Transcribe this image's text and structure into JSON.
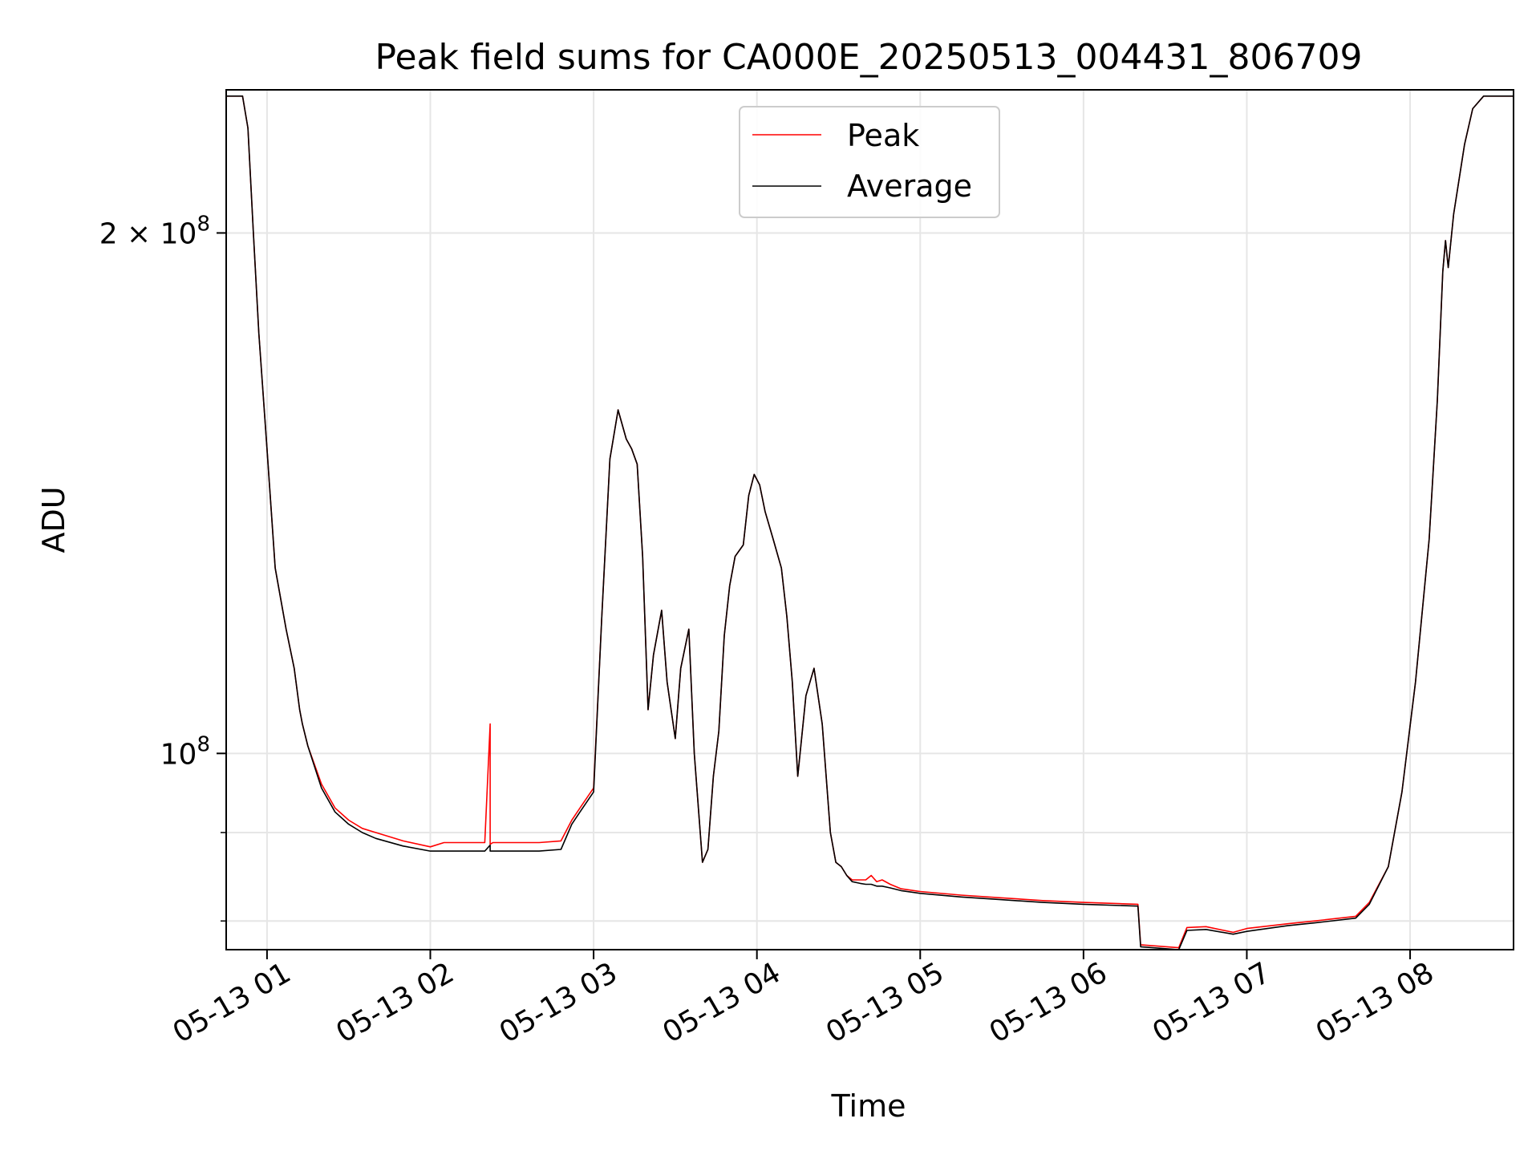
{
  "chart_data": {
    "type": "line",
    "title": "Peak field sums for CA000E_20250513_004431_806709",
    "xlabel": "Time",
    "ylabel": "ADU",
    "yscale": "log",
    "grid": true,
    "legend_position": "top-center",
    "xlim": [
      "05-13 00:45",
      "05-13 08:38"
    ],
    "ylim": [
      77000000,
      242000000
    ],
    "x_ticks": [
      {
        "value": "05-13 01:00",
        "label": "05-13 01"
      },
      {
        "value": "05-13 02:00",
        "label": "05-13 02"
      },
      {
        "value": "05-13 03:00",
        "label": "05-13 03"
      },
      {
        "value": "05-13 04:00",
        "label": "05-13 04"
      },
      {
        "value": "05-13 05:00",
        "label": "05-13 05"
      },
      {
        "value": "05-13 06:00",
        "label": "05-13 06"
      },
      {
        "value": "05-13 07:00",
        "label": "05-13 07"
      },
      {
        "value": "05-13 08:00",
        "label": "05-13 08"
      }
    ],
    "y_major_ticks": [
      {
        "value": 100000000,
        "label": "10",
        "exp": "8"
      },
      {
        "value": 200000000,
        "label": "2 × 10",
        "exp": "8"
      }
    ],
    "y_minor_ticks": [
      80000000,
      90000000
    ],
    "series": [
      {
        "name": "Peak",
        "color": "#ff0000",
        "x": [
          "05-13 00:45",
          "05-13 00:51",
          "05-13 00:53",
          "05-13 00:55",
          "05-13 00:57",
          "05-13 01:00",
          "05-13 01:03",
          "05-13 01:07",
          "05-13 01:10",
          "05-13 01:12",
          "05-13 01:13",
          "05-13 01:15",
          "05-13 01:20",
          "05-13 01:25",
          "05-13 01:30",
          "05-13 01:35",
          "05-13 01:40",
          "05-13 01:50",
          "05-13 02:00",
          "05-13 02:05",
          "05-13 02:20",
          "05-13 02:22",
          "05-13 02:22",
          "05-13 02:23",
          "05-13 02:30",
          "05-13 02:40",
          "05-13 02:48",
          "05-13 02:52",
          "05-13 02:55",
          "05-13 02:58",
          "05-13 03:00",
          "05-13 03:03",
          "05-13 03:06",
          "05-13 03:09",
          "05-13 03:12",
          "05-13 03:14",
          "05-13 03:16",
          "05-13 03:18",
          "05-13 03:20",
          "05-13 03:22",
          "05-13 03:25",
          "05-13 03:27",
          "05-13 03:30",
          "05-13 03:32",
          "05-13 03:35",
          "05-13 03:37",
          "05-13 03:40",
          "05-13 03:42",
          "05-13 03:44",
          "05-13 03:46",
          "05-13 03:48",
          "05-13 03:50",
          "05-13 03:52",
          "05-13 03:55",
          "05-13 03:57",
          "05-13 03:59",
          "05-13 04:01",
          "05-13 04:03",
          "05-13 04:06",
          "05-13 04:09",
          "05-13 04:11",
          "05-13 04:13",
          "05-13 04:15",
          "05-13 04:18",
          "05-13 04:21",
          "05-13 04:24",
          "05-13 04:27",
          "05-13 04:29",
          "05-13 04:31",
          "05-13 04:33",
          "05-13 04:35",
          "05-13 04:38",
          "05-13 04:40",
          "05-13 04:42",
          "05-13 04:44",
          "05-13 04:46",
          "05-13 04:49",
          "05-13 04:53",
          "05-13 05:00",
          "05-13 05:15",
          "05-13 05:30",
          "05-13 05:45",
          "05-13 06:00",
          "05-13 06:20",
          "05-13 06:21",
          "05-13 06:35",
          "05-13 06:38",
          "05-13 06:45",
          "05-13 06:55",
          "05-13 07:00",
          "05-13 07:15",
          "05-13 07:25",
          "05-13 07:40",
          "05-13 07:45",
          "05-13 07:52",
          "05-13 07:57",
          "05-13 08:02",
          "05-13 08:07",
          "05-13 08:10",
          "05-13 08:12",
          "05-13 08:13",
          "05-13 08:14",
          "05-13 08:16",
          "05-13 08:20",
          "05-13 08:23",
          "05-13 08:27",
          "05-13 08:38"
        ],
        "values": [
          240000000,
          240000000,
          230000000,
          200000000,
          175000000,
          150000000,
          128000000,
          118000000,
          112000000,
          106000000,
          104000000,
          101000000,
          96000000,
          93000000,
          91500000,
          90500000,
          90000000,
          89000000,
          88300000,
          88800000,
          88800000,
          104000000,
          88600000,
          88800000,
          88800000,
          88800000,
          89000000,
          91500000,
          93000000,
          94500000,
          95500000,
          120000000,
          148000000,
          158000000,
          152000000,
          150000000,
          147000000,
          130000000,
          106000000,
          114000000,
          121000000,
          110000000,
          102000000,
          112000000,
          118000000,
          100000000,
          86500000,
          88000000,
          97000000,
          103000000,
          117000000,
          125000000,
          130000000,
          132000000,
          141000000,
          145000000,
          143000000,
          138000000,
          133000000,
          128000000,
          120000000,
          110000000,
          97000000,
          108000000,
          112000000,
          104000000,
          90000000,
          86500000,
          86000000,
          85000000,
          84500000,
          84500000,
          84500000,
          85000000,
          84300000,
          84500000,
          84000000,
          83500000,
          83200000,
          82800000,
          82500000,
          82200000,
          82000000,
          81800000,
          77500000,
          77200000,
          79300000,
          79400000,
          78800000,
          79200000,
          79700000,
          80000000,
          80500000,
          82000000,
          86000000,
          95000000,
          110000000,
          133000000,
          160000000,
          190000000,
          198000000,
          191000000,
          205000000,
          225000000,
          236000000,
          240000000,
          240000000
        ]
      },
      {
        "name": "Average",
        "color": "#000000",
        "x": [
          "05-13 00:45",
          "05-13 00:51",
          "05-13 00:53",
          "05-13 00:55",
          "05-13 00:57",
          "05-13 01:00",
          "05-13 01:03",
          "05-13 01:07",
          "05-13 01:10",
          "05-13 01:12",
          "05-13 01:13",
          "05-13 01:15",
          "05-13 01:20",
          "05-13 01:25",
          "05-13 01:30",
          "05-13 01:35",
          "05-13 01:40",
          "05-13 01:50",
          "05-13 02:00",
          "05-13 02:05",
          "05-13 02:20",
          "05-13 02:22",
          "05-13 02:22",
          "05-13 02:23",
          "05-13 02:30",
          "05-13 02:40",
          "05-13 02:48",
          "05-13 02:52",
          "05-13 02:55",
          "05-13 02:58",
          "05-13 03:00",
          "05-13 03:03",
          "05-13 03:06",
          "05-13 03:09",
          "05-13 03:12",
          "05-13 03:14",
          "05-13 03:16",
          "05-13 03:18",
          "05-13 03:20",
          "05-13 03:22",
          "05-13 03:25",
          "05-13 03:27",
          "05-13 03:30",
          "05-13 03:32",
          "05-13 03:35",
          "05-13 03:37",
          "05-13 03:40",
          "05-13 03:42",
          "05-13 03:44",
          "05-13 03:46",
          "05-13 03:48",
          "05-13 03:50",
          "05-13 03:52",
          "05-13 03:55",
          "05-13 03:57",
          "05-13 03:59",
          "05-13 04:01",
          "05-13 04:03",
          "05-13 04:06",
          "05-13 04:09",
          "05-13 04:11",
          "05-13 04:13",
          "05-13 04:15",
          "05-13 04:18",
          "05-13 04:21",
          "05-13 04:24",
          "05-13 04:27",
          "05-13 04:29",
          "05-13 04:31",
          "05-13 04:33",
          "05-13 04:35",
          "05-13 04:38",
          "05-13 04:40",
          "05-13 04:42",
          "05-13 04:44",
          "05-13 04:46",
          "05-13 04:49",
          "05-13 04:53",
          "05-13 05:00",
          "05-13 05:15",
          "05-13 05:30",
          "05-13 05:45",
          "05-13 06:00",
          "05-13 06:20",
          "05-13 06:21",
          "05-13 06:35",
          "05-13 06:38",
          "05-13 06:45",
          "05-13 06:55",
          "05-13 07:00",
          "05-13 07:15",
          "05-13 07:25",
          "05-13 07:40",
          "05-13 07:45",
          "05-13 07:52",
          "05-13 07:57",
          "05-13 08:02",
          "05-13 08:07",
          "05-13 08:10",
          "05-13 08:12",
          "05-13 08:13",
          "05-13 08:14",
          "05-13 08:16",
          "05-13 08:20",
          "05-13 08:23",
          "05-13 08:27",
          "05-13 08:38"
        ],
        "values": [
          240000000,
          240000000,
          230000000,
          200000000,
          175000000,
          150000000,
          128000000,
          118000000,
          112000000,
          106000000,
          104000000,
          101000000,
          95500000,
          92500000,
          91000000,
          90000000,
          89300000,
          88400000,
          87800000,
          87800000,
          87800000,
          88500000,
          87800000,
          87800000,
          87800000,
          87800000,
          88000000,
          91000000,
          92500000,
          94000000,
          95000000,
          120000000,
          148000000,
          158000000,
          152000000,
          150000000,
          147000000,
          130000000,
          106000000,
          114000000,
          121000000,
          110000000,
          102000000,
          112000000,
          118000000,
          100000000,
          86500000,
          88000000,
          97000000,
          103000000,
          117000000,
          125000000,
          130000000,
          132000000,
          141000000,
          145000000,
          143000000,
          138000000,
          133000000,
          128000000,
          120000000,
          110000000,
          97000000,
          108000000,
          112000000,
          104000000,
          90000000,
          86500000,
          86000000,
          85000000,
          84300000,
          84100000,
          84000000,
          84000000,
          83800000,
          83800000,
          83600000,
          83300000,
          83000000,
          82600000,
          82300000,
          82000000,
          81800000,
          81600000,
          77300000,
          77000000,
          79000000,
          79100000,
          78600000,
          78900000,
          79500000,
          79800000,
          80300000,
          81800000,
          86000000,
          95000000,
          110000000,
          133000000,
          160000000,
          190000000,
          198000000,
          191000000,
          205000000,
          225000000,
          236000000,
          240000000,
          240000000
        ]
      }
    ]
  }
}
